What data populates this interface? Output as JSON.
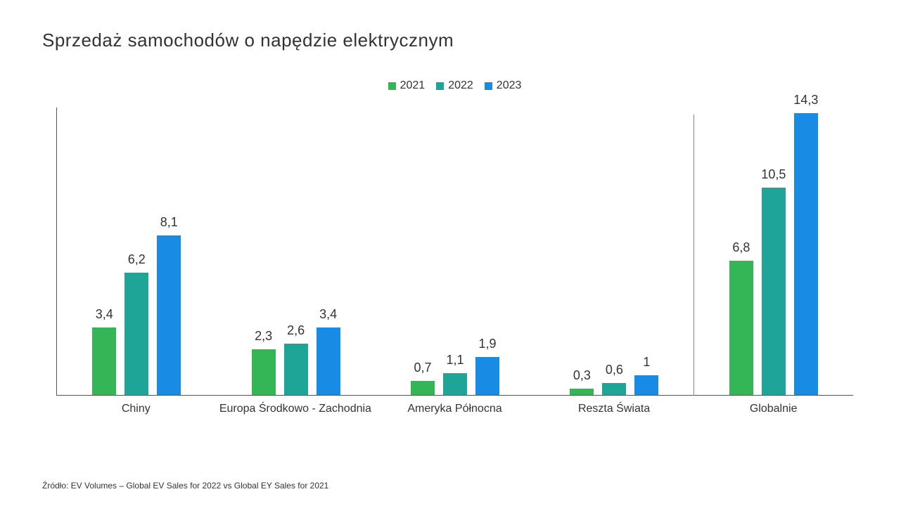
{
  "title": "Sprzedaż samochodów o napędzie elektrycznym",
  "source": "Źródło: EV Volumes – Global EV Sales for 2022  vs Global EY Sales for 2021",
  "chart": {
    "type": "bar",
    "y_max": 14.6,
    "label_fontsize": 18,
    "categories": [
      "Chiny",
      "Europa Środkowo - Zachodnia",
      "Ameryka Północna",
      "Reszta Świata",
      "Globalnie"
    ],
    "divider_after_index": 3,
    "series": [
      {
        "name": "2021",
        "color": "#34b556"
      },
      {
        "name": "2022",
        "color": "#1fa598"
      },
      {
        "name": "2023",
        "color": "#188ce5"
      }
    ],
    "data": [
      {
        "values": [
          3.4,
          6.2,
          8.1
        ],
        "labels": [
          "3,4",
          "6,2",
          "8,1"
        ]
      },
      {
        "values": [
          2.3,
          2.6,
          3.4
        ],
        "labels": [
          "2,3",
          "2,6",
          "3,4"
        ]
      },
      {
        "values": [
          0.7,
          1.1,
          1.9
        ],
        "labels": [
          "0,7",
          "1,1",
          "1,9"
        ]
      },
      {
        "values": [
          0.3,
          0.6,
          1.0
        ],
        "labels": [
          "0,3",
          "0,6",
          "1"
        ]
      },
      {
        "values": [
          6.8,
          10.5,
          14.3
        ],
        "labels": [
          "6,8",
          "10,5",
          "14,3"
        ]
      }
    ]
  }
}
